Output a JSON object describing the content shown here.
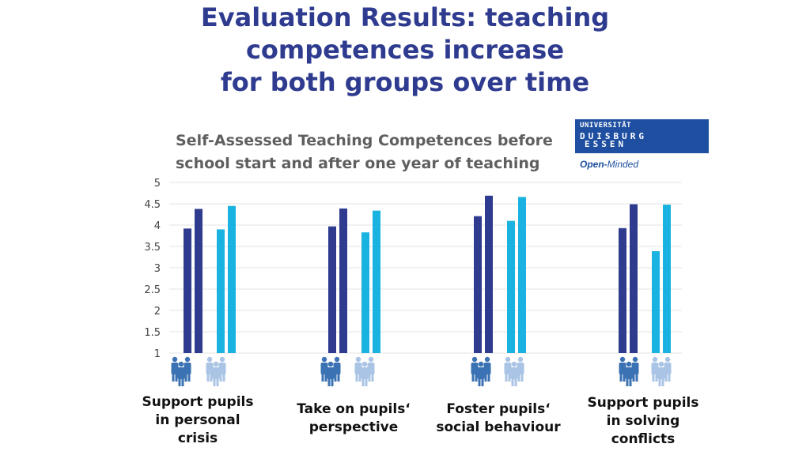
{
  "slide": {
    "title_lines": [
      "Evaluation Results: teaching",
      "competences increase",
      "for both groups over time"
    ]
  },
  "logo": {
    "line1": "UNIVERSITÄT",
    "line2": "DUISBURG",
    "line3": "ESSEN",
    "tagline_bold": "Open-",
    "tagline_rest": "Minded"
  },
  "colors": {
    "dark_blue": "#2e3b8f",
    "light_blue": "#1ab2e0",
    "icon_dark": "#3a72b3",
    "icon_light": "#a9c4e4"
  },
  "chart_data": {
    "type": "bar",
    "title_lines": [
      "Self-Assessed Teaching Competences before",
      "school start and after one year of teaching"
    ],
    "ylim": [
      1,
      5
    ],
    "yticks": [
      "5",
      "4.5",
      "4",
      "3.5",
      "3",
      "2.5",
      "2",
      "1.5",
      "1"
    ],
    "grid": true,
    "legend": "icons below bars (two groups)",
    "categories": [
      {
        "lines": [
          "Support pupils",
          "in personal",
          "crisis"
        ]
      },
      {
        "lines": [
          "Take on pupils‘",
          "perspective"
        ]
      },
      {
        "lines": [
          "Foster pupils‘",
          "social behaviour"
        ]
      },
      {
        "lines": [
          "Support pupils",
          "in solving",
          "conflicts"
        ]
      }
    ],
    "series": [
      {
        "values": [
          3.92,
          3.97,
          4.21,
          3.93
        ],
        "color": "#2e3b8f"
      },
      {
        "values": [
          4.38,
          4.39,
          4.69,
          4.49
        ],
        "color": "#2e3b8f"
      },
      {
        "values": [
          3.9,
          3.83,
          4.1,
          3.39
        ],
        "color": "#1ab2e0"
      },
      {
        "values": [
          4.45,
          4.34,
          4.66,
          4.48
        ],
        "color": "#1ab2e0"
      }
    ]
  }
}
